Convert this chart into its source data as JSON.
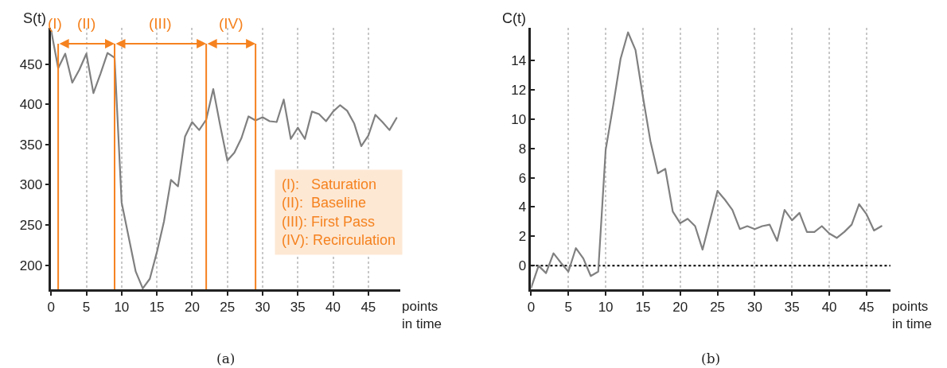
{
  "chart_data": [
    {
      "type": "line",
      "xlabel": "points in time",
      "ylabel": "S(t)",
      "x": [
        0,
        1,
        2,
        3,
        4,
        5,
        6,
        7,
        8,
        9,
        10,
        11,
        12,
        13,
        14,
        15,
        16,
        17,
        18,
        19,
        20,
        21,
        22,
        23,
        24,
        25,
        26,
        27,
        28,
        29,
        30,
        31,
        32,
        33,
        34,
        35,
        36,
        37,
        38,
        39,
        40,
        41,
        42,
        43,
        44,
        45,
        46,
        47,
        48,
        49
      ],
      "series": [
        {
          "color": "#808080",
          "values": [
            492,
            445,
            463,
            427,
            443,
            463,
            414,
            438,
            464,
            458,
            278,
            235,
            192,
            171,
            183,
            216,
            254,
            306,
            298,
            360,
            378,
            368,
            381,
            419,
            373,
            330,
            340,
            358,
            385,
            380,
            384,
            379,
            378,
            406,
            357,
            371,
            357,
            391,
            388,
            379,
            391,
            399,
            392,
            376,
            348,
            361,
            387,
            378,
            368,
            383
          ]
        }
      ],
      "xlim": [
        0,
        49.5
      ],
      "ylim": [
        170,
        495
      ],
      "xticks": [
        0,
        5,
        10,
        15,
        20,
        25,
        30,
        35,
        40,
        45
      ],
      "yticks": [
        200,
        250,
        300,
        350,
        400,
        450
      ],
      "grid": "x",
      "ref_lines": [
        {
          "axis": "x",
          "value": 1,
          "label": "(I)",
          "color": "#f5821f"
        },
        {
          "axis": "x",
          "value": 9,
          "label": "(II)",
          "color": "#f5821f"
        },
        {
          "axis": "x",
          "value": 22,
          "label": "(III)",
          "color": "#f5821f"
        },
        {
          "axis": "x",
          "value": 29,
          "label": "(IV)",
          "color": "#f5821f"
        }
      ],
      "annotations": [
        "(I):   Saturation",
        "(II):  Baseline",
        "(III): First Pass",
        "(IV): Recirculation",
        "(a)"
      ]
    },
    {
      "type": "line",
      "xlabel": "points in time",
      "ylabel": "C(t)",
      "x": [
        0,
        1,
        2,
        3,
        4,
        5,
        6,
        7,
        8,
        9,
        10,
        11,
        12,
        13,
        14,
        15,
        16,
        17,
        18,
        19,
        20,
        21,
        22,
        23,
        24,
        25,
        26,
        27,
        28,
        29,
        30,
        31,
        32,
        33,
        34,
        35,
        36,
        37,
        38,
        39,
        40,
        41,
        42,
        43,
        44,
        45,
        46,
        47
      ],
      "series": [
        {
          "color": "#808080",
          "values": [
            -1.5,
            0.0,
            -0.5,
            0.85,
            0.2,
            -0.4,
            1.2,
            0.5,
            -0.7,
            -0.4,
            7.9,
            10.9,
            14.1,
            15.9,
            14.7,
            11.5,
            8.5,
            6.3,
            6.6,
            3.7,
            2.9,
            3.2,
            2.7,
            1.1,
            3.1,
            5.1,
            4.5,
            3.8,
            2.5,
            2.7,
            2.5,
            2.7,
            2.8,
            1.7,
            3.8,
            3.1,
            3.6,
            2.3,
            2.3,
            2.7,
            2.2,
            1.9,
            2.3,
            2.8,
            4.2,
            3.5,
            2.4,
            2.7
          ]
        }
      ],
      "xlim": [
        0,
        48.2
      ],
      "ylim": [
        -1.6,
        16.2
      ],
      "xticks": [
        0,
        5,
        10,
        15,
        20,
        25,
        30,
        35,
        40,
        45
      ],
      "yticks": [
        0,
        2,
        4,
        6,
        8,
        10,
        12,
        14
      ],
      "grid": "x",
      "ref_lines": [
        {
          "axis": "y",
          "value": 0,
          "color": "#000000",
          "line_style": "dotted"
        }
      ],
      "annotations": [
        "(b)"
      ]
    }
  ]
}
